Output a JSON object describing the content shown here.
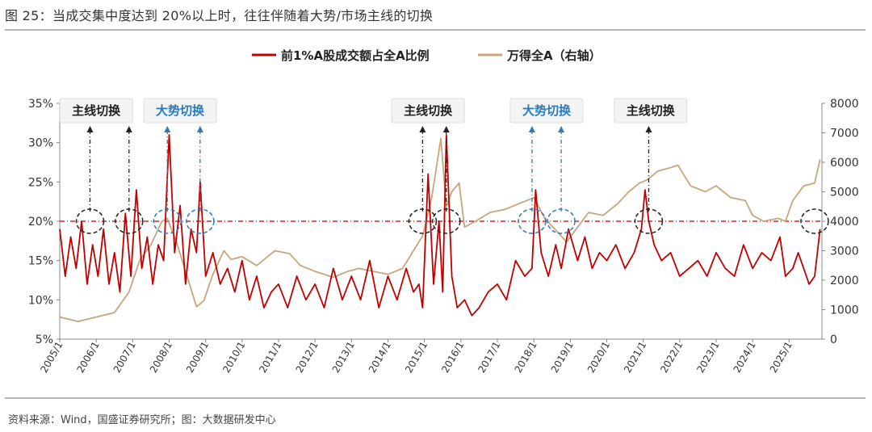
{
  "title": "图 25：当成交集中度达到 20%以上时，往往伴随着大势/市场主线的切换",
  "source": "资料来源：Wind，国盛证券研究所；图：大数据研发中心",
  "colors": {
    "left_series": "#c00000",
    "right_series": "#c8a57a",
    "blue_callout": "#2a7bbf",
    "black_callout": "#222222",
    "threshold": "#c00000"
  },
  "chart_data": {
    "type": "line",
    "title": "",
    "legend_placement": "top-center",
    "grid": false,
    "x_ticks": [
      "2005/1",
      "2006/1",
      "2007/1",
      "2008/1",
      "2009/1",
      "2010/1",
      "2011/1",
      "2012/1",
      "2013/1",
      "2014/1",
      "2015/1",
      "2016/1",
      "2017/1",
      "2018/1",
      "2019/1",
      "2020/1",
      "2021/1",
      "2022/1",
      "2023/1",
      "2024/1",
      "2025/1"
    ],
    "x_range": [
      2005.0,
      2025.9
    ],
    "y_left": {
      "range": [
        5,
        35
      ],
      "ticks": [
        "5%",
        "10%",
        "15%",
        "20%",
        "25%",
        "30%",
        "35%"
      ]
    },
    "y_right": {
      "range": [
        0,
        8000
      ],
      "ticks": [
        "0",
        "1000",
        "2000",
        "3000",
        "4000",
        "5000",
        "6000",
        "7000",
        "8000"
      ]
    },
    "threshold": {
      "value": 20,
      "axis": "left"
    },
    "series": [
      {
        "name": "前1%A股成交额占全A比例",
        "axis": "left",
        "color": "#c00000",
        "x": [
          2005.0,
          2005.15,
          2005.3,
          2005.45,
          2005.6,
          2005.75,
          2005.9,
          2006.05,
          2006.2,
          2006.35,
          2006.5,
          2006.65,
          2006.8,
          2006.95,
          2007.1,
          2007.25,
          2007.4,
          2007.55,
          2007.7,
          2007.85,
          2008.0,
          2008.15,
          2008.3,
          2008.45,
          2008.6,
          2008.75,
          2008.85,
          2009.0,
          2009.2,
          2009.4,
          2009.6,
          2009.8,
          2010.0,
          2010.2,
          2010.4,
          2010.6,
          2010.8,
          2011.0,
          2011.25,
          2011.5,
          2011.75,
          2012.0,
          2012.25,
          2012.5,
          2012.75,
          2013.0,
          2013.25,
          2013.5,
          2013.75,
          2014.0,
          2014.25,
          2014.5,
          2014.7,
          2014.85,
          2014.95,
          2015.1,
          2015.25,
          2015.4,
          2015.5,
          2015.6,
          2015.75,
          2015.9,
          2016.1,
          2016.3,
          2016.5,
          2016.75,
          2017.0,
          2017.25,
          2017.5,
          2017.75,
          2017.95,
          2018.05,
          2018.2,
          2018.4,
          2018.6,
          2018.75,
          2018.95,
          2019.2,
          2019.4,
          2019.6,
          2019.8,
          2020.0,
          2020.25,
          2020.5,
          2020.75,
          2020.95,
          2021.05,
          2021.15,
          2021.3,
          2021.5,
          2021.75,
          2022.0,
          2022.25,
          2022.5,
          2022.75,
          2023.0,
          2023.25,
          2023.5,
          2023.75,
          2024.0,
          2024.25,
          2024.5,
          2024.75,
          2024.9,
          2025.1,
          2025.25,
          2025.4,
          2025.55,
          2025.7,
          2025.85
        ],
        "y": [
          19,
          13,
          18,
          14,
          20,
          12,
          17,
          13,
          19,
          12,
          16,
          11,
          21,
          13,
          24,
          14,
          18,
          12,
          17,
          15,
          31,
          16,
          22,
          12,
          19,
          16,
          25,
          13,
          16,
          12,
          14,
          11,
          15,
          10,
          13,
          9,
          11,
          12,
          9,
          13,
          10,
          12,
          9,
          14,
          10,
          13,
          10,
          15,
          9,
          13,
          10,
          14,
          11,
          12,
          9,
          26,
          12,
          20,
          11,
          31,
          13,
          9,
          10,
          8,
          9,
          11,
          12,
          10,
          15,
          13,
          14,
          24,
          16,
          13,
          17,
          14,
          19,
          15,
          18,
          14,
          16,
          15,
          17,
          14,
          16,
          19,
          24,
          20,
          17,
          15,
          16,
          13,
          14,
          15,
          13,
          16,
          14,
          13,
          17,
          14,
          16,
          15,
          18,
          13,
          14,
          16,
          14,
          12,
          13,
          19
        ],
        "note": "values estimated from the printed plot"
      },
      {
        "name": "万得全A（右轴）",
        "axis": "right",
        "color": "#c8a57a",
        "x": [
          2005.0,
          2005.5,
          2006.0,
          2006.5,
          2006.9,
          2007.2,
          2007.5,
          2007.8,
          2007.95,
          2008.2,
          2008.5,
          2008.75,
          2008.95,
          2009.2,
          2009.5,
          2009.7,
          2010.0,
          2010.4,
          2010.7,
          2010.9,
          2011.3,
          2011.6,
          2012.0,
          2012.5,
          2012.9,
          2013.2,
          2013.6,
          2014.0,
          2014.4,
          2014.7,
          2014.95,
          2015.2,
          2015.45,
          2015.6,
          2015.75,
          2015.95,
          2016.1,
          2016.4,
          2016.8,
          2017.2,
          2017.6,
          2018.0,
          2018.3,
          2018.6,
          2018.9,
          2019.2,
          2019.5,
          2019.9,
          2020.3,
          2020.6,
          2020.9,
          2021.1,
          2021.4,
          2021.7,
          2021.95,
          2022.3,
          2022.7,
          2023.0,
          2023.4,
          2023.8,
          2024.0,
          2024.3,
          2024.7,
          2024.9,
          2025.1,
          2025.4,
          2025.7,
          2025.85
        ],
        "y": [
          750,
          600,
          750,
          900,
          1600,
          2700,
          3200,
          4000,
          4100,
          3300,
          2100,
          1100,
          1300,
          2200,
          3000,
          2700,
          2800,
          2500,
          2800,
          3000,
          2900,
          2500,
          2300,
          2100,
          2300,
          2400,
          2300,
          2200,
          2400,
          3000,
          3500,
          4800,
          6800,
          4500,
          5000,
          5300,
          3800,
          4000,
          4300,
          4400,
          4600,
          4800,
          4100,
          3700,
          3300,
          3800,
          4300,
          4200,
          4600,
          5000,
          5300,
          5400,
          5700,
          5800,
          5900,
          5200,
          5000,
          5200,
          4800,
          4700,
          4200,
          4000,
          4100,
          4000,
          4700,
          5200,
          5300,
          6100
        ],
        "note": "values estimated from the printed plot"
      }
    ],
    "callouts": [
      {
        "label": "主线切换",
        "color": "black",
        "x": 2006.0,
        "arrows_x": [
          2005.83,
          2006.9
        ],
        "circles_x": [
          2005.83,
          2006.9
        ]
      },
      {
        "label": "大势切换",
        "color": "blue",
        "x": 2008.3,
        "arrows_x": [
          2007.95,
          2008.85
        ],
        "circles_x": [
          2007.95,
          2008.85
        ]
      },
      {
        "label": "主线切换",
        "color": "black",
        "x": 2015.1,
        "arrows_x": [
          2014.95,
          2015.6
        ],
        "circles_x": [
          2014.95,
          2015.6
        ]
      },
      {
        "label": "大势切换",
        "color": "blue",
        "x": 2018.35,
        "arrows_x": [
          2017.95,
          2018.75
        ],
        "circles_x": [
          2017.95,
          2018.75
        ]
      },
      {
        "label": "主线切换",
        "color": "black",
        "x": 2021.2,
        "arrows_x": [
          2021.15
        ],
        "circles_x": [
          2021.15,
          2025.7
        ]
      }
    ]
  }
}
